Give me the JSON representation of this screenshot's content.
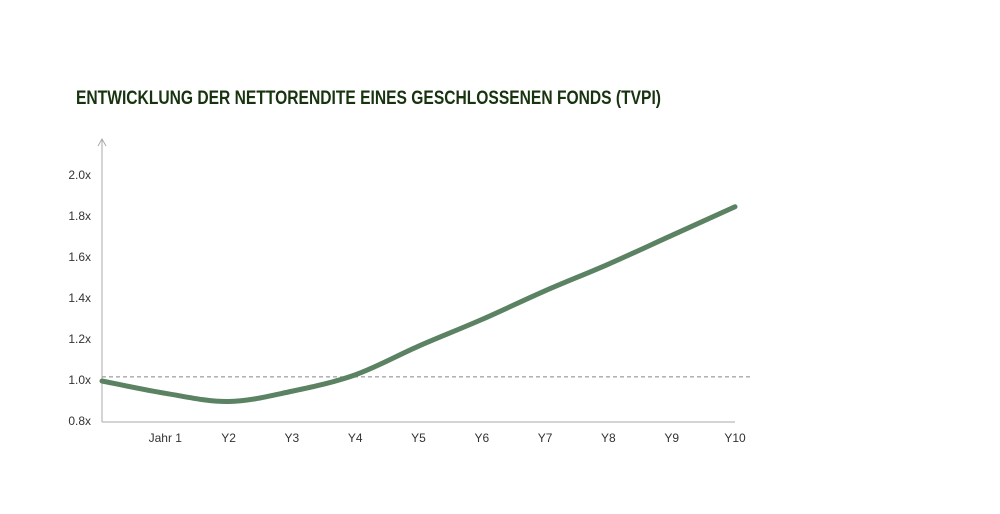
{
  "chart_data": {
    "type": "line",
    "title": "ENTWICKLUNG DER NETTORENDITE EINES GESCHLOSSENEN FONDS (TVPI)",
    "categories": [
      null,
      "Jahr 1",
      "Y2",
      "Y3",
      "Y4",
      "Y5",
      "Y6",
      "Y7",
      "Y8",
      "Y9",
      "Y10"
    ],
    "series": [
      {
        "name": "TVPI",
        "color": "#5b8262",
        "values": [
          1.0,
          0.94,
          0.9,
          0.95,
          1.03,
          1.17,
          1.3,
          1.44,
          1.57,
          1.71,
          1.85
        ]
      }
    ],
    "reference_line": 1.02,
    "ylim": [
      0.8,
      2.2
    ],
    "yticks": [
      {
        "value": 0.8,
        "label": "0.8x"
      },
      {
        "value": 1.0,
        "label": "1.0x"
      },
      {
        "value": 1.2,
        "label": "1.2x"
      },
      {
        "value": 1.4,
        "label": "1.4x"
      },
      {
        "value": 1.6,
        "label": "1.6x"
      },
      {
        "value": 1.8,
        "label": "1.8x"
      },
      {
        "value": 2.0,
        "label": "2.0x"
      }
    ],
    "grid": false
  }
}
